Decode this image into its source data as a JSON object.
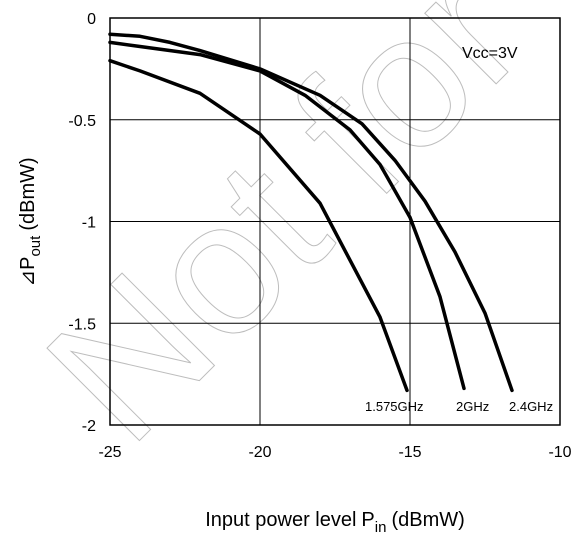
{
  "chart_data": {
    "type": "line",
    "title": "",
    "xlabel": "Input power level",
    "xlabel_symbol": "P",
    "xlabel_sub": "in",
    "xlabel_unit": "(dBmW)",
    "ylabel_symbol": "⊿P",
    "ylabel_sub": "out",
    "ylabel_unit": "(dBmW)",
    "xlim": [
      -25,
      -10
    ],
    "ylim": [
      -2,
      0
    ],
    "xticks": [
      -25,
      -20,
      -15,
      -10
    ],
    "yticks": [
      0,
      -0.5,
      -1,
      -1.5,
      -2
    ],
    "xtick_labels": [
      "-25",
      "-20",
      "-15",
      "-10"
    ],
    "ytick_labels": [
      "0",
      "-0.5",
      "-1",
      "-1.5",
      "-2"
    ],
    "grid": true,
    "annotation": "Vcc=3V",
    "watermark": "Not for",
    "series": [
      {
        "name": "1.575GHz",
        "x": [
          -25,
          -24,
          -22,
          -20,
          -18,
          -16,
          -15.1
        ],
        "y": [
          -0.21,
          -0.26,
          -0.37,
          -0.57,
          -0.91,
          -1.47,
          -1.83
        ]
      },
      {
        "name": "2GHz",
        "x": [
          -25,
          -24,
          -22,
          -20,
          -18.5,
          -17,
          -16,
          -15,
          -14,
          -13.2
        ],
        "y": [
          -0.12,
          -0.14,
          -0.18,
          -0.26,
          -0.38,
          -0.55,
          -0.72,
          -0.98,
          -1.37,
          -1.82
        ]
      },
      {
        "name": "2.4GHz",
        "x": [
          -25,
          -24,
          -23,
          -22,
          -20,
          -18,
          -16.6,
          -15.5,
          -14.5,
          -13.5,
          -12.5,
          -11.6
        ],
        "y": [
          -0.08,
          -0.09,
          -0.12,
          -0.16,
          -0.25,
          -0.38,
          -0.52,
          -0.7,
          -0.9,
          -1.15,
          -1.45,
          -1.83
        ]
      }
    ]
  }
}
